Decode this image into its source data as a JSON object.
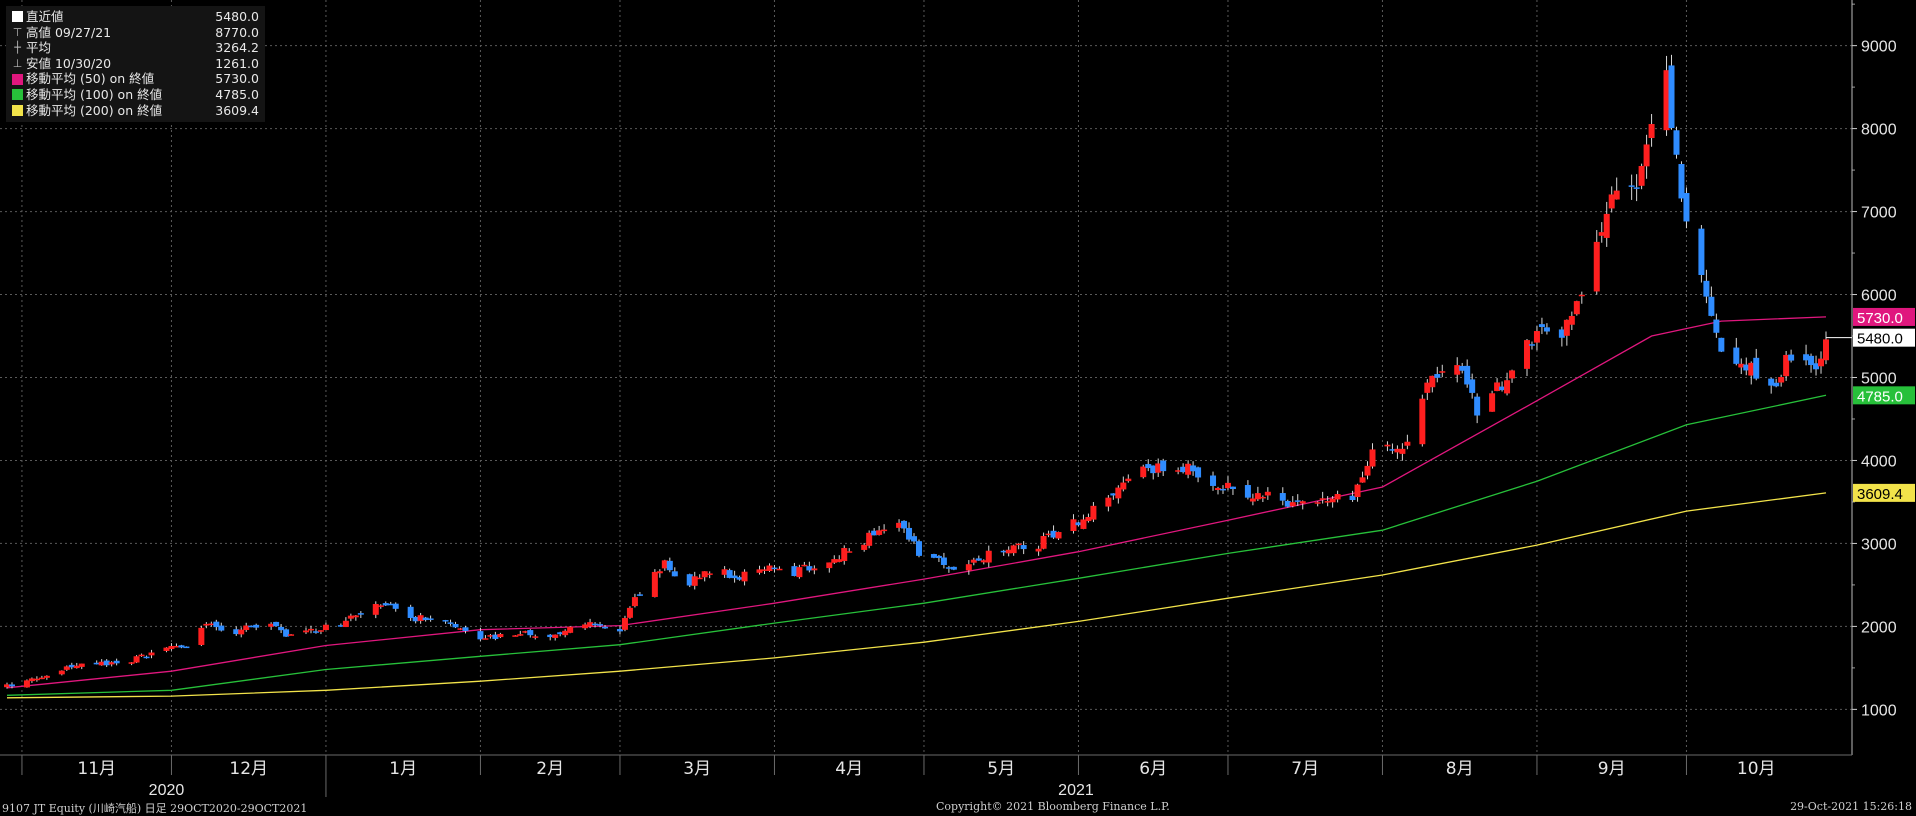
{
  "legend": {
    "items": [
      {
        "label": "直近値",
        "value": "5480.0",
        "swatch": "#ffffff",
        "icon": "square-swatch"
      },
      {
        "label": "高値 09/27/21",
        "value": "8770.0",
        "icon": "high-marker-icon"
      },
      {
        "label": "平均",
        "value": "3264.2",
        "icon": "average-marker-icon"
      },
      {
        "label": "安値 10/30/20",
        "value": "1261.0",
        "icon": "low-marker-icon"
      },
      {
        "label": "移動平均 (50) on 終値",
        "value": "5730.0",
        "swatch": "#e0177e"
      },
      {
        "label": "移動平均 (100) on 終値",
        "value": "4785.0",
        "swatch": "#27c03a"
      },
      {
        "label": "移動平均 (200) on 終値",
        "value": "3609.4",
        "swatch": "#f2e34a"
      }
    ]
  },
  "footer": {
    "left": "9107 JT Equity (川崎汽船) 日足 29OCT2020-29OCT2021",
    "center": "Copyright© 2021 Bloomberg Finance L.P.",
    "right": "29-Oct-2021 15:26:18"
  },
  "chart_data": {
    "type": "candlestick",
    "x_range": [
      "2020-10-29",
      "2021-10-29"
    ],
    "month_labels": [
      "11月",
      "12月",
      "1月",
      "2月",
      "3月",
      "4月",
      "5月",
      "6月",
      "7月",
      "8月",
      "9月",
      "10月"
    ],
    "year_labels": [
      "2020",
      "2021"
    ],
    "y_ticks": [
      1000,
      2000,
      3000,
      4000,
      5000,
      6000,
      7000,
      8000,
      9000
    ],
    "ylim": [
      450,
      9550
    ],
    "grid": true,
    "up_color": "#ff1f1f",
    "down_color": "#2f8cff",
    "price_path": [
      [
        "2020-10-29",
        1280
      ],
      [
        "2020-11-06",
        1420
      ],
      [
        "2020-11-12",
        1540
      ],
      [
        "2020-11-20",
        1560
      ],
      [
        "2020-11-27",
        1660
      ],
      [
        "2020-12-04",
        1790
      ],
      [
        "2020-12-08",
        2020
      ],
      [
        "2020-12-14",
        1950
      ],
      [
        "2020-12-21",
        2010
      ],
      [
        "2020-12-25",
        1880
      ],
      [
        "2021-01-04",
        2040
      ],
      [
        "2021-01-12",
        2270
      ],
      [
        "2021-01-18",
        2120
      ],
      [
        "2021-01-25",
        2040
      ],
      [
        "2021-02-01",
        1830
      ],
      [
        "2021-02-08",
        1920
      ],
      [
        "2021-02-15",
        1890
      ],
      [
        "2021-02-22",
        2050
      ],
      [
        "2021-03-01",
        1960
      ],
      [
        "2021-03-05",
        2420
      ],
      [
        "2021-03-10",
        2740
      ],
      [
        "2021-03-15",
        2540
      ],
      [
        "2021-03-19",
        2650
      ],
      [
        "2021-03-25",
        2610
      ],
      [
        "2021-03-31",
        2770
      ],
      [
        "2021-04-05",
        2660
      ],
      [
        "2021-04-12",
        2780
      ],
      [
        "2021-04-19",
        3020
      ],
      [
        "2021-04-26",
        3300
      ],
      [
        "2021-04-30",
        2900
      ],
      [
        "2021-05-07",
        2700
      ],
      [
        "2021-05-13",
        2850
      ],
      [
        "2021-05-18",
        2960
      ],
      [
        "2021-05-24",
        3000
      ],
      [
        "2021-05-28",
        3100
      ],
      [
        "2021-06-04",
        3420
      ],
      [
        "2021-06-10",
        3700
      ],
      [
        "2021-06-16",
        3920
      ],
      [
        "2021-06-22",
        3900
      ],
      [
        "2021-06-28",
        3760
      ],
      [
        "2021-07-05",
        3620
      ],
      [
        "2021-07-12",
        3500
      ],
      [
        "2021-07-19",
        3450
      ],
      [
        "2021-07-26",
        3570
      ],
      [
        "2021-07-30",
        4100
      ],
      [
        "2021-08-05",
        4100
      ],
      [
        "2021-08-10",
        4900
      ],
      [
        "2021-08-16",
        5100
      ],
      [
        "2021-08-20",
        4600
      ],
      [
        "2021-08-25",
        4900
      ],
      [
        "2021-08-31",
        5500
      ],
      [
        "2021-09-06",
        5600
      ],
      [
        "2021-09-10",
        6100
      ],
      [
        "2021-09-15",
        7100
      ],
      [
        "2021-09-21",
        7400
      ],
      [
        "2021-09-24",
        8000
      ],
      [
        "2021-09-27",
        8600
      ],
      [
        "2021-09-30",
        7300
      ],
      [
        "2021-10-04",
        6100
      ],
      [
        "2021-10-08",
        5400
      ],
      [
        "2021-10-13",
        5200
      ],
      [
        "2021-10-18",
        4800
      ],
      [
        "2021-10-22",
        5300
      ],
      [
        "2021-10-27",
        5200
      ],
      [
        "2021-10-29",
        5480
      ]
    ],
    "series": [
      {
        "name": "移動平均 (50) on 終値",
        "color": "#e0177e",
        "points": [
          [
            "2020-10-29",
            1260
          ],
          [
            "2020-12-01",
            1460
          ],
          [
            "2021-01-01",
            1770
          ],
          [
            "2021-02-01",
            1960
          ],
          [
            "2021-03-01",
            2010
          ],
          [
            "2021-04-01",
            2280
          ],
          [
            "2021-05-01",
            2570
          ],
          [
            "2021-06-01",
            2900
          ],
          [
            "2021-07-01",
            3280
          ],
          [
            "2021-08-01",
            3680
          ],
          [
            "2021-09-01",
            4720
          ],
          [
            "2021-09-24",
            5500
          ],
          [
            "2021-10-08",
            5680
          ],
          [
            "2021-10-29",
            5730
          ]
        ]
      },
      {
        "name": "移動平均 (100) on 終値",
        "color": "#27c03a",
        "points": [
          [
            "2020-10-29",
            1170
          ],
          [
            "2020-12-01",
            1230
          ],
          [
            "2021-01-01",
            1480
          ],
          [
            "2021-02-01",
            1640
          ],
          [
            "2021-03-01",
            1780
          ],
          [
            "2021-04-01",
            2040
          ],
          [
            "2021-05-01",
            2280
          ],
          [
            "2021-06-01",
            2580
          ],
          [
            "2021-07-01",
            2880
          ],
          [
            "2021-08-01",
            3160
          ],
          [
            "2021-09-01",
            3750
          ],
          [
            "2021-10-01",
            4430
          ],
          [
            "2021-10-29",
            4785
          ]
        ]
      },
      {
        "name": "移動平均 (200) on 終値",
        "color": "#f2e34a",
        "points": [
          [
            "2020-10-29",
            1140
          ],
          [
            "2020-12-01",
            1160
          ],
          [
            "2021-01-01",
            1230
          ],
          [
            "2021-02-01",
            1340
          ],
          [
            "2021-03-01",
            1460
          ],
          [
            "2021-04-01",
            1620
          ],
          [
            "2021-05-01",
            1810
          ],
          [
            "2021-06-01",
            2060
          ],
          [
            "2021-07-01",
            2340
          ],
          [
            "2021-08-01",
            2620
          ],
          [
            "2021-09-01",
            2980
          ],
          [
            "2021-10-01",
            3390
          ],
          [
            "2021-10-29",
            3609.4
          ]
        ]
      }
    ],
    "last_price": {
      "value": 5480.0,
      "label": "5480.0"
    },
    "axis_tags": [
      {
        "value": 5730.0,
        "label": "5730.0",
        "bg": "#e0177e",
        "fg": "#ffffff"
      },
      {
        "value": 4785.0,
        "label": "4785.0",
        "bg": "#27c03a",
        "fg": "#ffffff"
      },
      {
        "value": 3609.4,
        "label": "3609.4",
        "bg": "#f2e34a",
        "fg": "#000000"
      }
    ]
  }
}
